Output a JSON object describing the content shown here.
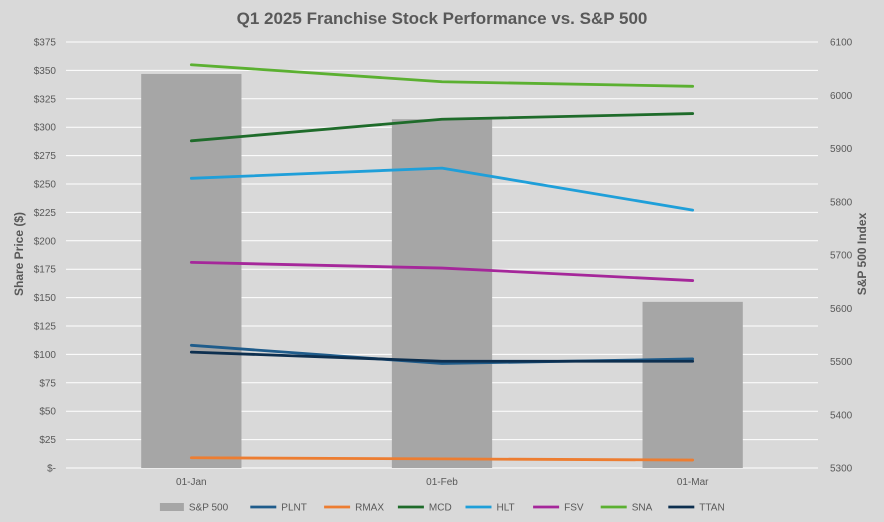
{
  "chart_data": {
    "type": "bar+line",
    "title": "Q1 2025 Franchise Stock Performance vs. S&P 500",
    "categories": [
      "01-Jan",
      "01-Feb",
      "01-Mar"
    ],
    "left_axis": {
      "label": "Share Price ($)",
      "ylim": [
        0,
        375
      ],
      "ticks": [
        "$-",
        "$25",
        "$50",
        "$75",
        "$100",
        "$125",
        "$150",
        "$175",
        "$200",
        "$225",
        "$250",
        "$275",
        "$300",
        "$325",
        "$350",
        "$375"
      ]
    },
    "right_axis": {
      "label": "S&P 500 Index",
      "ylim": [
        5300,
        6100
      ],
      "ticks": [
        "5300",
        "5400",
        "5500",
        "5600",
        "5700",
        "5800",
        "5900",
        "6000",
        "6100"
      ]
    },
    "bar_series": {
      "name": "S&P 500",
      "color": "#a6a6a6",
      "values": [
        6040,
        5955,
        5612
      ]
    },
    "line_series": [
      {
        "name": "PLNT",
        "color": "#1f5c8b",
        "values": [
          108,
          92,
          96
        ]
      },
      {
        "name": "RMAX",
        "color": "#ed7d31",
        "values": [
          9,
          8,
          7
        ]
      },
      {
        "name": "MCD",
        "color": "#1e6b2a",
        "values": [
          288,
          307,
          312
        ]
      },
      {
        "name": "HLT",
        "color": "#1f9fd9",
        "values": [
          255,
          264,
          227
        ]
      },
      {
        "name": "FSV",
        "color": "#a5279a",
        "values": [
          181,
          176,
          165
        ]
      },
      {
        "name": "SNA",
        "color": "#5bb031",
        "values": [
          355,
          340,
          336
        ]
      },
      {
        "name": "TTAN",
        "color": "#0d2f4f",
        "values": [
          102,
          94,
          94
        ]
      }
    ],
    "legend_position": "bottom",
    "grid": true
  }
}
